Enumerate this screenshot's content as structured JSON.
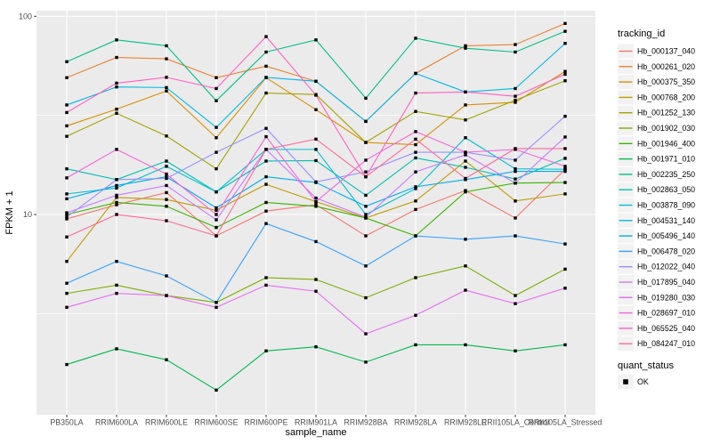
{
  "chart_data": {
    "type": "line",
    "xlabel": "sample_name",
    "ylabel": "FPKM + 1",
    "y_scale": "log10",
    "y_ticks": [
      {
        "label": "100",
        "value": 100
      },
      {
        "label": "10",
        "value": 10
      }
    ],
    "y_minor_breaks": [
      31.62,
      3.162
    ],
    "y_range_approx": [
      0.97,
      107
    ],
    "grid": true,
    "x_categories": [
      "PB350LA",
      "RRIM600LA",
      "RRIM600LE",
      "RRIM600SE",
      "RRIM600PE",
      "RRIM901LA",
      "RRIM928BA",
      "RRIM928LA",
      "RRIM928LE",
      "RRII105LA_Control",
      "RRII105LA_Stressed"
    ],
    "legend": {
      "position": "right",
      "color_title": "tracking_id",
      "shape_title": "quant_status",
      "shape_items": [
        {
          "label": "OK",
          "marker": "black-square"
        }
      ]
    },
    "point_marker": "small-black-square",
    "series": [
      {
        "name": "Hb_000137_040",
        "color": "#F8766D",
        "values": [
          9.5,
          11.2,
          12.9,
          7.8,
          10.4,
          11.2,
          7.8,
          10.6,
          13.2,
          9.6,
          16.9
        ]
      },
      {
        "name": "Hb_000261_020",
        "color": "#EA8331",
        "values": [
          49,
          62,
          61,
          49,
          56,
          47,
          29.5,
          51.5,
          71,
          72,
          92
        ]
      },
      {
        "name": "Hb_000375_350",
        "color": "#D89000",
        "values": [
          28,
          34,
          42,
          24.4,
          49,
          33.8,
          23.1,
          22.5,
          35.7,
          36.8,
          52.7
        ]
      },
      {
        "name": "Hb_000768_200",
        "color": "#C09B00",
        "values": [
          5.8,
          12.2,
          11.9,
          10.5,
          14.2,
          11.6,
          9.6,
          11.7,
          18.6,
          11.7,
          12.7
        ]
      },
      {
        "name": "Hb_001252_130",
        "color": "#A3A500",
        "values": [
          24.8,
          32.4,
          24.9,
          17.0,
          41,
          40.3,
          23.1,
          33.1,
          30,
          37.7,
          47.3
        ]
      },
      {
        "name": "Hb_001902_030",
        "color": "#7CAE00",
        "values": [
          4.0,
          4.4,
          3.9,
          3.6,
          4.8,
          4.7,
          3.8,
          4.8,
          5.5,
          3.9,
          5.3
        ]
      },
      {
        "name": "Hb_001946_400",
        "color": "#39B600",
        "values": [
          10,
          11.5,
          11,
          8.6,
          11.5,
          11,
          9.6,
          7.8,
          13,
          14.4,
          14.5
        ]
      },
      {
        "name": "Hb_001971_010",
        "color": "#00BB4E",
        "values": [
          1.75,
          2.1,
          1.85,
          1.3,
          2.05,
          2.15,
          1.8,
          2.2,
          2.2,
          2.05,
          2.2
        ]
      },
      {
        "name": "Hb_002235_250",
        "color": "#00C087",
        "values": [
          59,
          76,
          71,
          37.5,
          66,
          76,
          38.6,
          77.5,
          69,
          66,
          84
        ]
      },
      {
        "name": "Hb_002863_050",
        "color": "#00C0B2",
        "values": [
          17,
          15,
          18.6,
          13,
          18.6,
          18.7,
          12.5,
          19.3,
          17.3,
          15.1,
          19.2
        ]
      },
      {
        "name": "Hb_003878_090",
        "color": "#00BFD3",
        "values": [
          12.7,
          13.6,
          17.5,
          13,
          21.3,
          21.3,
          10,
          13.5,
          24.4,
          17,
          16.9
        ]
      },
      {
        "name": "Hb_004531_140",
        "color": "#00B8E7",
        "values": [
          35.7,
          44,
          43.7,
          27.5,
          49.2,
          47,
          29.5,
          51.5,
          41.5,
          43.2,
          73
        ]
      },
      {
        "name": "Hb_005496_140",
        "color": "#00ACF4",
        "values": [
          12,
          14,
          15.5,
          10.8,
          15.5,
          14.5,
          11,
          13.8,
          15,
          16.5,
          16.5
        ]
      },
      {
        "name": "Hb_006478_020",
        "color": "#35A2FF",
        "values": [
          4.5,
          5.8,
          4.9,
          3.6,
          9.0,
          7.3,
          5.5,
          7.8,
          7.5,
          7.8,
          7.1
        ]
      },
      {
        "name": "Hb_012022_040",
        "color": "#9590FF",
        "values": [
          9.7,
          15,
          15.2,
          20.6,
          27.2,
          14.6,
          16.4,
          20.6,
          20.6,
          18.8,
          31.3
        ]
      },
      {
        "name": "Hb_017895_040",
        "color": "#C77CFF",
        "values": [
          10.2,
          12.5,
          14,
          9.4,
          21.3,
          12.1,
          9.7,
          16.4,
          20,
          14.4,
          24.6
        ]
      },
      {
        "name": "Hb_019280_030",
        "color": "#E76BF3",
        "values": [
          3.4,
          4.0,
          3.9,
          3.4,
          4.4,
          4.1,
          2.5,
          3.1,
          4.15,
          3.55,
          4.25
        ]
      },
      {
        "name": "Hb_028697_010",
        "color": "#FA62DB",
        "values": [
          15.3,
          21.3,
          16,
          10,
          24.7,
          11.6,
          18.8,
          26.2,
          20.6,
          21.3,
          17.5
        ]
      },
      {
        "name": "Hb_065525_040",
        "color": "#FF61C2",
        "values": [
          32.7,
          46,
          49.2,
          43.2,
          79,
          40,
          15.5,
          41,
          41.5,
          39.5,
          51
        ]
      },
      {
        "name": "Hb_084247_010",
        "color": "#FF6A98",
        "values": [
          7.7,
          10,
          9.3,
          7.8,
          21.3,
          24,
          15.5,
          24,
          15.2,
          21.5,
          21.5
        ]
      }
    ]
  },
  "colors": {
    "panel_bg": "#EBEBEB",
    "grid_major": "#FFFFFF",
    "grid_minor": "#FFFFFF",
    "axis_text": "#4D4D4D",
    "tick_mark": "#333333",
    "title_text": "#000000",
    "legend_key_bg": "#F2F2F2",
    "point": "#000000"
  }
}
